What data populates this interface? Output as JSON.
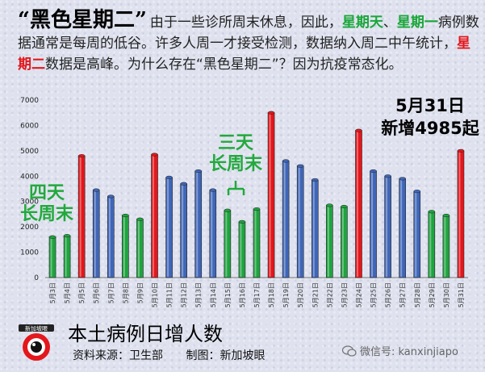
{
  "header": {
    "title": "“黑色星期二”",
    "t1": "由于一些诊所周末休息，因此，",
    "g1": "星期天",
    "t2": "、",
    "g2": "星期一",
    "t3": "病例数据通常是每周的低谷。许多人周一才接受检测，数据纳入周二中午统计，",
    "r1": "星期二",
    "t4": "数据是高峰。为什么存在“黑色星期二”？因为抗疫常态化。"
  },
  "annotations": {
    "four_day_1": "四天",
    "four_day_2": "长周末",
    "three_day_1": "三天",
    "three_day_2": "长周末",
    "new_cases_1": "5月31日",
    "new_cases_2": "新增4985起"
  },
  "footer": {
    "title": "本土病例日增人数",
    "source": "资料来源：卫生部",
    "credit": "制图：新加坡眼",
    "wechat": "微信号: kanxinjiapo",
    "logo_text": "新加坡眼"
  },
  "colors": {
    "red": "#e3171c",
    "blue": "#3f66b8",
    "green": "#1fa43f"
  },
  "chart_data": {
    "type": "bar",
    "title": "本土病例日增人数",
    "ylim": [
      0,
      7000
    ],
    "yticks": [
      0,
      1000,
      2000,
      3000,
      4000,
      5000,
      6000,
      7000
    ],
    "categories": [
      "5月3日",
      "5月4日",
      "5月5日",
      "5月6日",
      "5月7日",
      "5月8日",
      "5月9日",
      "5月10日",
      "5月11日",
      "5月12日",
      "5月13日",
      "5月14日",
      "5月15日",
      "5月16日",
      "5月17日",
      "5月18日",
      "5月19日",
      "5月20日",
      "5月21日",
      "5月22日",
      "5月23日",
      "5月24日",
      "5月25日",
      "5月26日",
      "5月27日",
      "5月28日",
      "5月29日",
      "5月30日",
      "5月31日"
    ],
    "values": [
      1600,
      1650,
      4800,
      3450,
      3200,
      2450,
      2300,
      4850,
      3950,
      3700,
      4200,
      3450,
      2650,
      2200,
      2700,
      6500,
      4600,
      4400,
      3850,
      2850,
      2800,
      5800,
      4200,
      4000,
      3900,
      3400,
      2600,
      2450,
      5000
    ],
    "bar_colors": [
      "green",
      "green",
      "red",
      "blue",
      "blue",
      "green",
      "green",
      "red",
      "blue",
      "blue",
      "blue",
      "blue",
      "green",
      "green",
      "green",
      "red",
      "blue",
      "blue",
      "blue",
      "green",
      "green",
      "red",
      "blue",
      "blue",
      "blue",
      "blue",
      "green",
      "green",
      "red"
    ]
  }
}
